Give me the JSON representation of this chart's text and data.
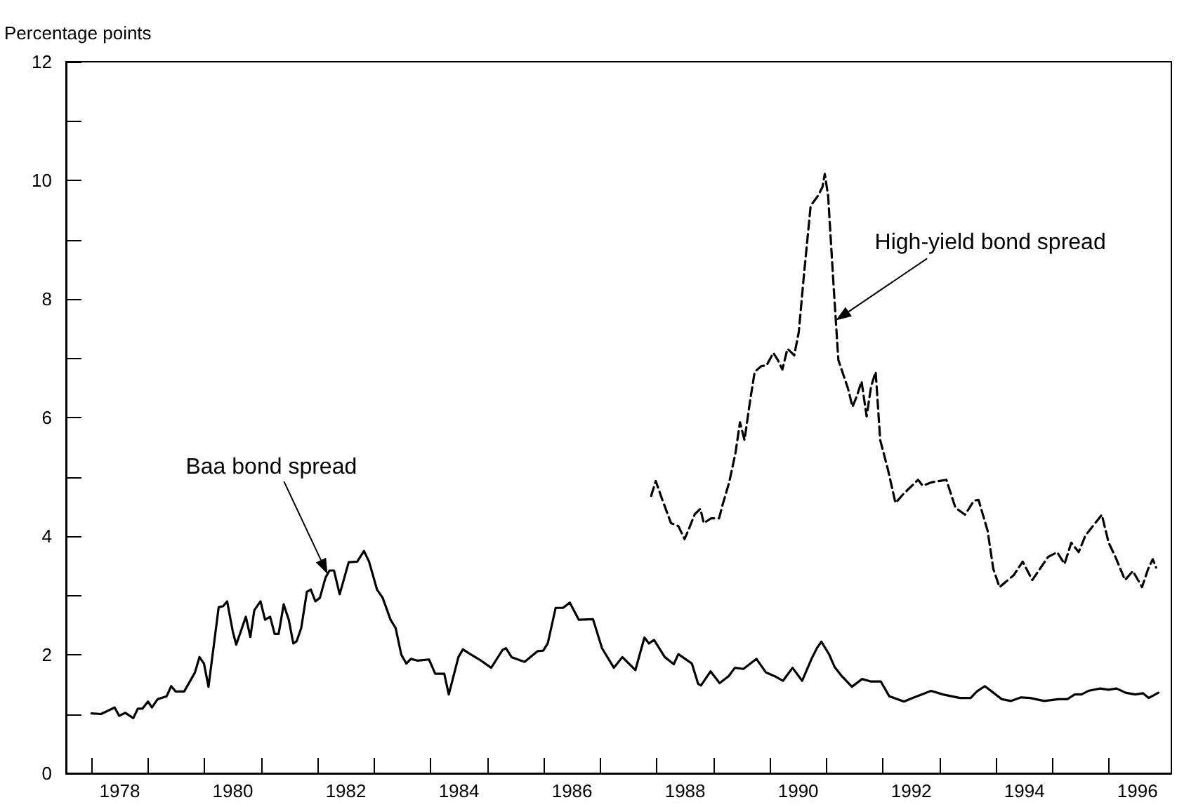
{
  "chart_data": {
    "type": "line",
    "ylabel": "Percentage points",
    "marker": "none",
    "grid": false,
    "xlim": [
      1977.55,
      1997.1
    ],
    "xticks": [
      {
        "value": 1978,
        "label": null
      },
      {
        "value": 1978.5,
        "label": "1978"
      },
      {
        "value": 1979,
        "label": null
      },
      {
        "value": 1980,
        "label": null
      },
      {
        "value": 1980.5,
        "label": "1980"
      },
      {
        "value": 1981,
        "label": null
      },
      {
        "value": 1982,
        "label": null
      },
      {
        "value": 1982.5,
        "label": "1982"
      },
      {
        "value": 1983,
        "label": null
      },
      {
        "value": 1984,
        "label": null
      },
      {
        "value": 1984.5,
        "label": "1984"
      },
      {
        "value": 1985,
        "label": null
      },
      {
        "value": 1986,
        "label": null
      },
      {
        "value": 1986.5,
        "label": "1986"
      },
      {
        "value": 1987,
        "label": null
      },
      {
        "value": 1988,
        "label": null
      },
      {
        "value": 1988.5,
        "label": "1988"
      },
      {
        "value": 1989,
        "label": null
      },
      {
        "value": 1990,
        "label": null
      },
      {
        "value": 1990.5,
        "label": "1990"
      },
      {
        "value": 1991,
        "label": null
      },
      {
        "value": 1992,
        "label": null
      },
      {
        "value": 1992.5,
        "label": "1992"
      },
      {
        "value": 1993,
        "label": null
      },
      {
        "value": 1994,
        "label": null
      },
      {
        "value": 1994.5,
        "label": "1994"
      },
      {
        "value": 1995,
        "label": null
      },
      {
        "value": 1996,
        "label": null
      },
      {
        "value": 1996.5,
        "label": "1996"
      }
    ],
    "ylim": [
      0,
      12
    ],
    "yticks": [
      0,
      {
        "value": 1,
        "label": null
      },
      2,
      {
        "value": 3,
        "label": null
      },
      4,
      {
        "value": 5,
        "label": null
      },
      6,
      {
        "value": 7,
        "label": null
      },
      8,
      {
        "value": 9,
        "label": null
      },
      10,
      {
        "value": 11,
        "label": null
      },
      12
    ],
    "annotations": [
      "Baa bond spread",
      "High-yield bond spread"
    ],
    "series": [
      {
        "color": "#000000",
        "line_style": "solid",
        "x": [
          1978.0,
          1978.17,
          1978.41,
          1978.49,
          1978.6,
          1978.74,
          1978.82,
          1978.9,
          1979.0,
          1979.07,
          1979.17,
          1979.33,
          1979.41,
          1979.49,
          1979.64,
          1979.83,
          1979.91,
          1979.99,
          1980.07,
          1980.25,
          1980.33,
          1980.4,
          1980.5,
          1980.56,
          1980.73,
          1980.81,
          1980.88,
          1980.99,
          1981.07,
          1981.16,
          1981.24,
          1981.31,
          1981.4,
          1981.49,
          1981.57,
          1981.63,
          1981.71,
          1981.81,
          1981.88,
          1981.96,
          1982.04,
          1982.14,
          1982.21,
          1982.29,
          1982.39,
          1982.55,
          1982.7,
          1982.82,
          1982.91,
          1983.05,
          1983.15,
          1983.29,
          1983.38,
          1983.48,
          1983.57,
          1983.65,
          1983.77,
          1983.97,
          1984.08,
          1984.24,
          1984.32,
          1984.49,
          1984.57,
          1984.7,
          1984.86,
          1985.07,
          1985.27,
          1985.33,
          1985.43,
          1985.66,
          1985.89,
          1985.99,
          1986.07,
          1986.21,
          1986.34,
          1986.46,
          1986.62,
          1986.87,
          1987.03,
          1987.24,
          1987.39,
          1987.62,
          1987.78,
          1987.86,
          1987.95,
          1988.14,
          1988.3,
          1988.38,
          1988.62,
          1988.73,
          1988.78,
          1988.95,
          1989.11,
          1989.27,
          1989.38,
          1989.53,
          1989.76,
          1989.93,
          1990.08,
          1990.23,
          1990.4,
          1990.57,
          1990.73,
          1990.83,
          1990.91,
          1991.05,
          1991.14,
          1991.27,
          1991.45,
          1991.63,
          1991.78,
          1991.96,
          1992.11,
          1992.37,
          1992.52,
          1992.85,
          1993.06,
          1993.36,
          1993.55,
          1993.66,
          1993.8,
          1994.1,
          1994.26,
          1994.44,
          1994.6,
          1994.85,
          1995.1,
          1995.26,
          1995.39,
          1995.51,
          1995.63,
          1995.84,
          1995.99,
          1996.13,
          1996.29,
          1996.46,
          1996.6,
          1996.7,
          1996.87
        ],
        "values": [
          1.01,
          1.0,
          1.11,
          0.97,
          1.02,
          0.93,
          1.09,
          1.09,
          1.21,
          1.11,
          1.25,
          1.3,
          1.47,
          1.38,
          1.38,
          1.7,
          1.96,
          1.85,
          1.46,
          2.8,
          2.82,
          2.9,
          2.39,
          2.17,
          2.64,
          2.3,
          2.75,
          2.9,
          2.59,
          2.64,
          2.35,
          2.35,
          2.85,
          2.59,
          2.19,
          2.23,
          2.45,
          3.06,
          3.1,
          2.9,
          2.96,
          3.3,
          3.42,
          3.42,
          3.02,
          3.56,
          3.57,
          3.75,
          3.57,
          3.1,
          2.96,
          2.59,
          2.45,
          2.0,
          1.85,
          1.93,
          1.9,
          1.92,
          1.68,
          1.68,
          1.33,
          1.96,
          2.09,
          2.01,
          1.92,
          1.78,
          2.08,
          2.11,
          1.96,
          1.88,
          2.06,
          2.07,
          2.19,
          2.79,
          2.79,
          2.88,
          2.59,
          2.6,
          2.11,
          1.78,
          1.96,
          1.74,
          2.29,
          2.19,
          2.25,
          1.96,
          1.84,
          2.01,
          1.85,
          1.51,
          1.48,
          1.72,
          1.52,
          1.64,
          1.78,
          1.76,
          1.93,
          1.7,
          1.64,
          1.56,
          1.78,
          1.56,
          1.92,
          2.11,
          2.22,
          2.0,
          1.8,
          1.64,
          1.46,
          1.59,
          1.55,
          1.55,
          1.3,
          1.21,
          1.27,
          1.39,
          1.33,
          1.27,
          1.27,
          1.38,
          1.47,
          1.25,
          1.22,
          1.28,
          1.27,
          1.22,
          1.25,
          1.25,
          1.33,
          1.33,
          1.39,
          1.43,
          1.41,
          1.43,
          1.36,
          1.33,
          1.35,
          1.27,
          1.36
        ]
      },
      {
        "color": "#000000",
        "line_style": "dashed",
        "x": [
          1987.9,
          1987.98,
          1988.09,
          1988.25,
          1988.38,
          1988.49,
          1988.57,
          1988.67,
          1988.77,
          1988.83,
          1988.96,
          1989.1,
          1989.16,
          1989.28,
          1989.39,
          1989.47,
          1989.55,
          1989.65,
          1989.73,
          1989.85,
          1989.94,
          1990.06,
          1990.14,
          1990.22,
          1990.31,
          1990.43,
          1990.51,
          1990.6,
          1990.72,
          1990.85,
          1990.93,
          1990.97,
          1991.03,
          1991.12,
          1991.21,
          1991.38,
          1991.46,
          1991.54,
          1991.62,
          1991.71,
          1991.79,
          1991.87,
          1991.95,
          1992.08,
          1992.22,
          1992.37,
          1992.62,
          1992.7,
          1992.87,
          1993.12,
          1993.28,
          1993.45,
          1993.61,
          1993.69,
          1993.85,
          1993.95,
          1994.06,
          1994.31,
          1994.47,
          1994.64,
          1994.92,
          1995.08,
          1995.21,
          1995.33,
          1995.46,
          1995.58,
          1995.87,
          1995.99,
          1996.11,
          1996.28,
          1996.42,
          1996.58,
          1996.69,
          1996.77,
          1996.83
        ],
        "values": [
          4.68,
          4.93,
          4.63,
          4.22,
          4.17,
          3.95,
          4.13,
          4.37,
          4.46,
          4.22,
          4.3,
          4.3,
          4.52,
          4.91,
          5.4,
          5.92,
          5.62,
          6.29,
          6.77,
          6.87,
          6.88,
          7.09,
          6.97,
          6.81,
          7.16,
          7.05,
          7.44,
          8.39,
          9.57,
          9.74,
          9.89,
          10.11,
          9.73,
          8.31,
          6.97,
          6.49,
          6.18,
          6.37,
          6.61,
          6.02,
          6.53,
          6.77,
          5.62,
          5.15,
          4.56,
          4.72,
          4.95,
          4.85,
          4.91,
          4.95,
          4.48,
          4.36,
          4.6,
          4.61,
          4.09,
          3.45,
          3.14,
          3.34,
          3.57,
          3.26,
          3.65,
          3.73,
          3.53,
          3.89,
          3.73,
          4.01,
          4.36,
          3.89,
          3.65,
          3.26,
          3.41,
          3.14,
          3.45,
          3.61,
          3.47
        ]
      }
    ]
  }
}
